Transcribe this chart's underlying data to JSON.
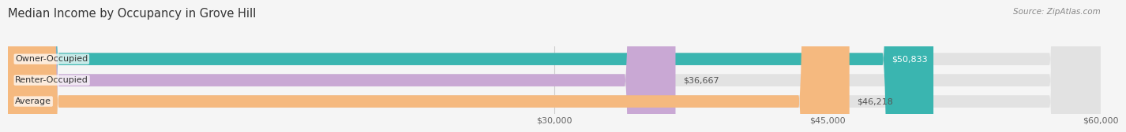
{
  "title": "Median Income by Occupancy in Grove Hill",
  "source": "Source: ZipAtlas.com",
  "categories": [
    "Owner-Occupied",
    "Renter-Occupied",
    "Average"
  ],
  "values": [
    50833,
    36667,
    46218
  ],
  "bar_colors": [
    "#3ab5b0",
    "#c9a8d4",
    "#f5b97f"
  ],
  "bar_labels": [
    "$50,833",
    "$36,667",
    "$46,218"
  ],
  "xlim": [
    0,
    60000
  ],
  "xticks": [
    30000,
    45000,
    60000
  ],
  "xtick_labels": [
    "$30,000",
    "$45,000",
    "$60,000"
  ],
  "background_color": "#f5f5f5",
  "bar_bg_color": "#e2e2e2",
  "title_fontsize": 10.5,
  "label_fontsize": 8.0,
  "tick_fontsize": 8.0,
  "source_fontsize": 7.5,
  "bar_height": 0.58,
  "label_color_inside": "#ffffff",
  "label_color_outside": "#555555",
  "cat_label_color": "#333333",
  "grid_color": "#cccccc",
  "value_threshold": 48000
}
